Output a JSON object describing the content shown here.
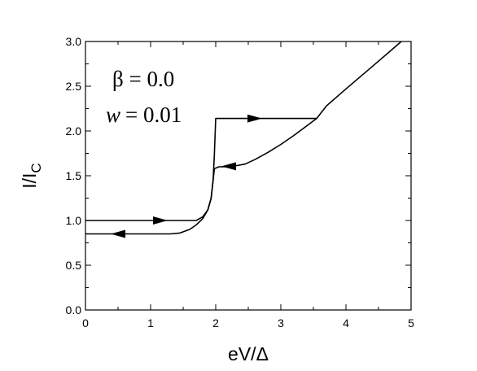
{
  "chart_data": {
    "type": "line",
    "xlabel": "eV/Δ",
    "ylabel_main": "I/I",
    "ylabel_sub": "C",
    "xlim": [
      0,
      5
    ],
    "ylim": [
      0,
      3.0
    ],
    "xticks": [
      0,
      1,
      2,
      3,
      4,
      5
    ],
    "xtick_labels": [
      "0",
      "1",
      "2",
      "3",
      "4",
      "5"
    ],
    "yticks": [
      0,
      0.5,
      1.0,
      1.5,
      2.0,
      2.5,
      3.0
    ],
    "ytick_labels": [
      "0.0",
      "0.5",
      "1.0",
      "1.5",
      "2.0",
      "2.5",
      "3.0"
    ],
    "grid": false,
    "annotations": {
      "beta_line": "β = 0.0",
      "w_symbol": "w",
      "w_value": "= 0.01"
    },
    "series": [
      {
        "x": [
          0,
          1.7,
          1.8,
          1.88,
          1.93,
          1.96,
          1.98,
          2.0,
          2.02,
          3.55,
          3.7,
          4.0,
          4.5,
          4.85
        ],
        "y": [
          1.0,
          1.0,
          1.04,
          1.12,
          1.25,
          1.45,
          1.75,
          2.14,
          2.14,
          2.14,
          2.28,
          2.47,
          2.78,
          3.0
        ]
      },
      {
        "x": [
          3.55,
          3.2,
          3.0,
          2.8,
          2.6,
          2.45,
          2.3,
          2.15,
          2.05,
          1.98,
          1.96,
          1.93,
          1.88,
          1.8,
          1.7,
          1.6,
          1.45,
          1.3,
          1.0,
          0.5,
          0.0
        ],
        "y": [
          2.14,
          1.95,
          1.85,
          1.76,
          1.68,
          1.63,
          1.61,
          1.6,
          1.6,
          1.58,
          1.45,
          1.25,
          1.12,
          1.02,
          0.95,
          0.9,
          0.86,
          0.85,
          0.85,
          0.85,
          0.85
        ]
      }
    ],
    "arrows": [
      {
        "x": 1.15,
        "y": 1.0,
        "direction": "right"
      },
      {
        "x": 2.6,
        "y": 2.14,
        "direction": "right"
      },
      {
        "x": 2.2,
        "y": 1.605,
        "direction": "left"
      },
      {
        "x": 0.5,
        "y": 0.85,
        "direction": "left"
      }
    ]
  }
}
